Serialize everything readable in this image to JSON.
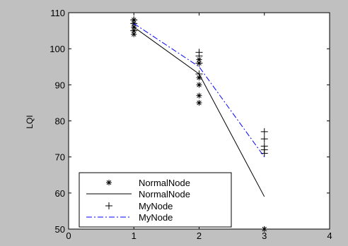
{
  "chart_data": {
    "type": "scatter",
    "title": "",
    "xlabel": "",
    "ylabel": "LQI",
    "xlim": [
      0,
      4
    ],
    "ylim": [
      50,
      110
    ],
    "xticks": [
      "0",
      "1",
      "2",
      "3",
      "4"
    ],
    "yticks": [
      "50",
      "60",
      "70",
      "80",
      "90",
      "100",
      "110"
    ],
    "grid": false,
    "legend_position": "bottom-left",
    "series": [
      {
        "name": "NormalNode",
        "kind": "markers",
        "marker": "asterisk",
        "color": "#000000",
        "points": [
          [
            1,
            104
          ],
          [
            1,
            105
          ],
          [
            1,
            106
          ],
          [
            1,
            107
          ],
          [
            1,
            108
          ],
          [
            2,
            85
          ],
          [
            2,
            87
          ],
          [
            2,
            90
          ],
          [
            2,
            92
          ],
          [
            2,
            96
          ],
          [
            2,
            97
          ],
          [
            3,
            50
          ]
        ]
      },
      {
        "name": "NormalNode",
        "kind": "line",
        "dash": "solid",
        "color": "#000000",
        "x": [
          1,
          2,
          3
        ],
        "y": [
          106,
          93,
          59
        ]
      },
      {
        "name": "MyNode",
        "kind": "markers",
        "marker": "plus",
        "color": "#000000",
        "points": [
          [
            1,
            105
          ],
          [
            1,
            107
          ],
          [
            1,
            108
          ],
          [
            2,
            93
          ],
          [
            2,
            96
          ],
          [
            2,
            98
          ],
          [
            2,
            99
          ],
          [
            3,
            71
          ],
          [
            3,
            72
          ],
          [
            3,
            73
          ],
          [
            3,
            75
          ],
          [
            3,
            77
          ]
        ]
      },
      {
        "name": "MyNode",
        "kind": "line",
        "dash": "dash-dot",
        "color": "#0000ff",
        "x": [
          1,
          2,
          3
        ],
        "y": [
          107,
          95,
          70
        ]
      }
    ]
  }
}
